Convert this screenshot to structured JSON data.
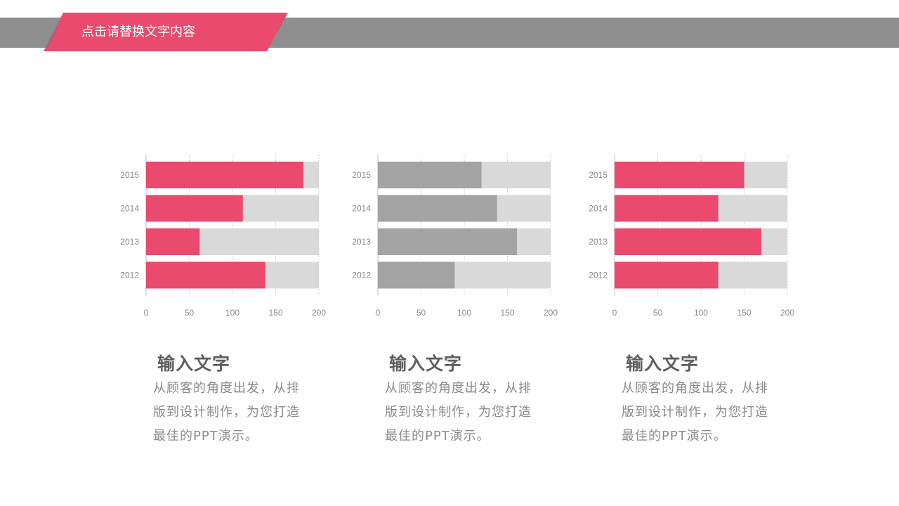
{
  "header": {
    "title": "点击请替换文字内容"
  },
  "colors": {
    "pink": "#e94a6d",
    "gray_bar": "#a3a3a3",
    "track": "#d9d9d9",
    "band": "#8f8f8f"
  },
  "chart_data": [
    {
      "type": "bar",
      "orientation": "horizontal",
      "categories": [
        "2015",
        "2014",
        "2013",
        "2012"
      ],
      "values": [
        182,
        112,
        62,
        138
      ],
      "xlim": [
        0,
        200
      ],
      "xticks": [
        "0",
        "50",
        "100",
        "150",
        "200"
      ],
      "color": "#e94a6d",
      "track_color": "#d9d9d9"
    },
    {
      "type": "bar",
      "orientation": "horizontal",
      "categories": [
        "2015",
        "2014",
        "2013",
        "2012"
      ],
      "values": [
        120,
        138,
        161,
        89
      ],
      "xlim": [
        0,
        200
      ],
      "xticks": [
        "0",
        "50",
        "100",
        "150",
        "200"
      ],
      "color": "#a3a3a3",
      "track_color": "#d9d9d9"
    },
    {
      "type": "bar",
      "orientation": "horizontal",
      "categories": [
        "2015",
        "2014",
        "2013",
        "2012"
      ],
      "values": [
        150,
        120,
        170,
        120
      ],
      "xlim": [
        0,
        200
      ],
      "xticks": [
        "0",
        "50",
        "100",
        "150",
        "200"
      ],
      "color": "#e94a6d",
      "track_color": "#d9d9d9"
    }
  ],
  "captions": [
    {
      "title": "输入文字",
      "body": "从顾客的角度出发，从排版到设计制作，为您打造最佳的PPT演示。"
    },
    {
      "title": "输入文字",
      "body": "从顾客的角度出发，从排版到设计制作，为您打造最佳的PPT演示。"
    },
    {
      "title": "输入文字",
      "body": "从顾客的角度出发，从排版到设计制作，为您打造最佳的PPT演示。"
    }
  ]
}
